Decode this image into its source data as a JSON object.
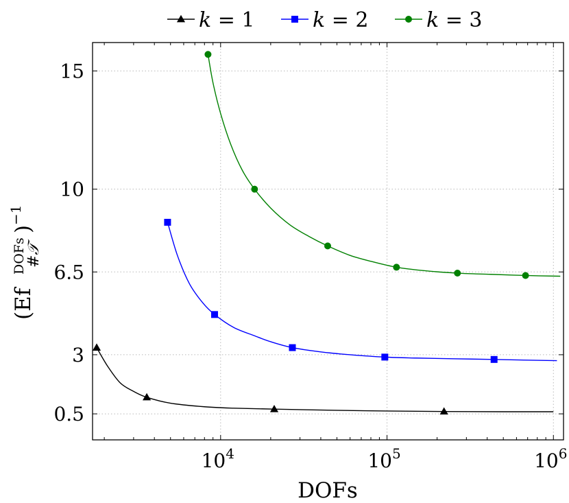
{
  "chart_data": {
    "type": "line",
    "xlabel": "DOFs",
    "ylabel": "(Ef DOFs/#T)^-1",
    "ylabel_parts": {
      "open": "(Ef",
      "sup": "DOFs",
      "sub": "#𝒯",
      "close": ")",
      "exp": "−1"
    },
    "x_scale": "log",
    "xlim": [
      1700,
      1150000
    ],
    "ylim": [
      -0.6,
      16.2
    ],
    "x_ticks": [
      {
        "value": 10000,
        "base": "10",
        "exp": "4"
      },
      {
        "value": 100000,
        "base": "10",
        "exp": "5"
      },
      {
        "value": 1000000,
        "base": "10",
        "exp": "6"
      }
    ],
    "y_ticks": [
      {
        "value": 0.5,
        "label": "0.5"
      },
      {
        "value": 3,
        "label": "3"
      },
      {
        "value": 6.5,
        "label": "6.5"
      },
      {
        "value": 10,
        "label": "10"
      },
      {
        "value": 15,
        "label": "15"
      }
    ],
    "grid": true,
    "legend": {
      "placement": "top-center, outside"
    },
    "series": [
      {
        "name": "k = 1",
        "var": "k",
        "eq": "= 1",
        "marker": "triangle",
        "color": "#000000",
        "points": [
          [
            1800,
            3.3
          ],
          [
            3600,
            1.2
          ],
          [
            21000,
            0.7
          ],
          [
            220000,
            0.6
          ]
        ],
        "curve": [
          [
            1800,
            3.3
          ],
          [
            2100,
            2.5
          ],
          [
            2500,
            1.8
          ],
          [
            3000,
            1.45
          ],
          [
            3600,
            1.2
          ],
          [
            5000,
            0.95
          ],
          [
            8000,
            0.8
          ],
          [
            12000,
            0.74
          ],
          [
            21000,
            0.7
          ],
          [
            50000,
            0.65
          ],
          [
            100000,
            0.62
          ],
          [
            220000,
            0.6
          ],
          [
            500000,
            0.59
          ],
          [
            1000000,
            0.59
          ]
        ]
      },
      {
        "name": "k = 2",
        "var": "k",
        "eq": "= 2",
        "marker": "square",
        "color": "#0000ff",
        "points": [
          [
            4800,
            8.6
          ],
          [
            9200,
            4.7
          ],
          [
            27000,
            3.3
          ],
          [
            97000,
            2.9
          ],
          [
            440000,
            2.8
          ]
        ],
        "curve": [
          [
            4800,
            8.6
          ],
          [
            5500,
            7.2
          ],
          [
            6500,
            6.0
          ],
          [
            7800,
            5.2
          ],
          [
            9200,
            4.7
          ],
          [
            12000,
            4.15
          ],
          [
            16000,
            3.8
          ],
          [
            20000,
            3.55
          ],
          [
            27000,
            3.3
          ],
          [
            40000,
            3.12
          ],
          [
            60000,
            3.0
          ],
          [
            97000,
            2.9
          ],
          [
            150000,
            2.86
          ],
          [
            250000,
            2.83
          ],
          [
            440000,
            2.8
          ],
          [
            700000,
            2.77
          ],
          [
            1050000,
            2.75
          ]
        ]
      },
      {
        "name": "k = 3",
        "var": "k",
        "eq": "= 3",
        "marker": "circle",
        "color": "#008000",
        "points": [
          [
            8400,
            15.7
          ],
          [
            16000,
            10.0
          ],
          [
            44000,
            7.6
          ],
          [
            114000,
            6.7
          ],
          [
            265000,
            6.45
          ],
          [
            680000,
            6.35
          ]
        ],
        "curve": [
          [
            8400,
            15.7
          ],
          [
            9000,
            14.5
          ],
          [
            10000,
            13.2
          ],
          [
            11500,
            11.9
          ],
          [
            13500,
            10.8
          ],
          [
            16000,
            10.0
          ],
          [
            20000,
            9.2
          ],
          [
            26000,
            8.5
          ],
          [
            34000,
            8.0
          ],
          [
            44000,
            7.6
          ],
          [
            60000,
            7.2
          ],
          [
            80000,
            6.95
          ],
          [
            114000,
            6.7
          ],
          [
            170000,
            6.55
          ],
          [
            265000,
            6.45
          ],
          [
            420000,
            6.4
          ],
          [
            680000,
            6.35
          ],
          [
            1100000,
            6.32
          ]
        ]
      }
    ]
  }
}
